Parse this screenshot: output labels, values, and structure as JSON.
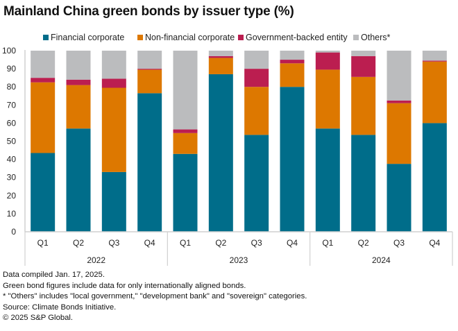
{
  "title": "Mainland China green bonds by issuer type (%)",
  "colors": {
    "financial": "#006d8a",
    "nonfinancial": "#dd7800",
    "government": "#bb1e50",
    "others": "#bbbcbe",
    "axis": "#d0d0d0"
  },
  "legend": [
    {
      "label": "Financial corporate",
      "key": "financial"
    },
    {
      "label": "Non-financial corporate",
      "key": "nonfinancial"
    },
    {
      "label": "Government-backed entity",
      "key": "government"
    },
    {
      "label": "Others*",
      "key": "others"
    }
  ],
  "notes": [
    "Data compiled Jan. 17, 2025.",
    "Green bond figures include data for only internationally aligned bonds.",
    "* \"Others\" includes \"local government,\" \"development bank\" and \"sovereign\" categories.",
    "Source: Climate Bonds Initiative.",
    "© 2025 S&P Global."
  ],
  "chart_data": {
    "type": "bar",
    "stacked": true,
    "title": "Mainland China green bonds by issuer type (%)",
    "xlabel": "",
    "ylabel": "",
    "ylim": [
      0,
      100
    ],
    "yticks": [
      0,
      10,
      20,
      30,
      40,
      50,
      60,
      70,
      80,
      90,
      100
    ],
    "grid": false,
    "legend_position": "top-center",
    "categories": [
      "Q1",
      "Q2",
      "Q3",
      "Q4",
      "Q1",
      "Q2",
      "Q3",
      "Q4",
      "Q1",
      "Q2",
      "Q3",
      "Q4"
    ],
    "groups": [
      {
        "label": "2022",
        "start": 0,
        "count": 4
      },
      {
        "label": "2023",
        "start": 4,
        "count": 4
      },
      {
        "label": "2024",
        "start": 8,
        "count": 4
      }
    ],
    "series": [
      {
        "name": "Financial corporate",
        "key": "financial",
        "values": [
          43.5,
          57,
          33,
          76.5,
          43,
          87,
          53.5,
          80,
          57,
          53.5,
          37.5,
          60
        ]
      },
      {
        "name": "Non-financial corporate",
        "key": "nonfinancial",
        "values": [
          39,
          24,
          46.5,
          13,
          11.5,
          9,
          26.5,
          13,
          32.5,
          32,
          33.5,
          34
        ]
      },
      {
        "name": "Government-backed entity",
        "key": "government",
        "values": [
          2.5,
          3,
          5,
          0.5,
          2,
          1,
          10,
          2,
          9.5,
          11.5,
          1.5,
          0.5
        ]
      },
      {
        "name": "Others*",
        "key": "others",
        "values": [
          15,
          16,
          15.5,
          10,
          43.5,
          3,
          10,
          5,
          1,
          3,
          27.5,
          5.5
        ]
      }
    ]
  }
}
